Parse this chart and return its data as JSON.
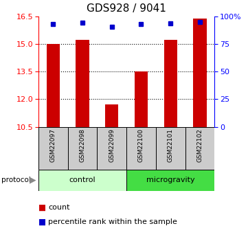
{
  "title": "GDS928 / 9041",
  "samples": [
    "GSM22097",
    "GSM22098",
    "GSM22099",
    "GSM22100",
    "GSM22101",
    "GSM22102"
  ],
  "bar_values": [
    15.0,
    15.22,
    11.72,
    13.53,
    15.22,
    16.38
  ],
  "percentile_values": [
    93.5,
    94.5,
    90.5,
    93.5,
    94.0,
    94.8
  ],
  "ylim_left": [
    10.5,
    16.5
  ],
  "ylim_right": [
    0,
    100
  ],
  "yticks_left": [
    10.5,
    12.0,
    13.5,
    15.0,
    16.5
  ],
  "yticks_right": [
    0,
    25,
    50,
    75,
    100
  ],
  "ytick_labels_right": [
    "0",
    "25",
    "50",
    "75",
    "100%"
  ],
  "grid_values": [
    12.0,
    13.5,
    15.0
  ],
  "bar_color": "#CC0000",
  "dot_color": "#0000CC",
  "bar_width": 0.45,
  "group_labels": [
    "control",
    "microgravity"
  ],
  "group_color_control": "#CCFFCC",
  "group_color_micro": "#44DD44",
  "sample_box_color": "#CCCCCC",
  "legend_items": [
    "count",
    "percentile rank within the sample"
  ],
  "title_fontsize": 11,
  "tick_fontsize": 8,
  "legend_fontsize": 8,
  "sample_fontsize": 6.5,
  "protocol_fontsize": 8
}
